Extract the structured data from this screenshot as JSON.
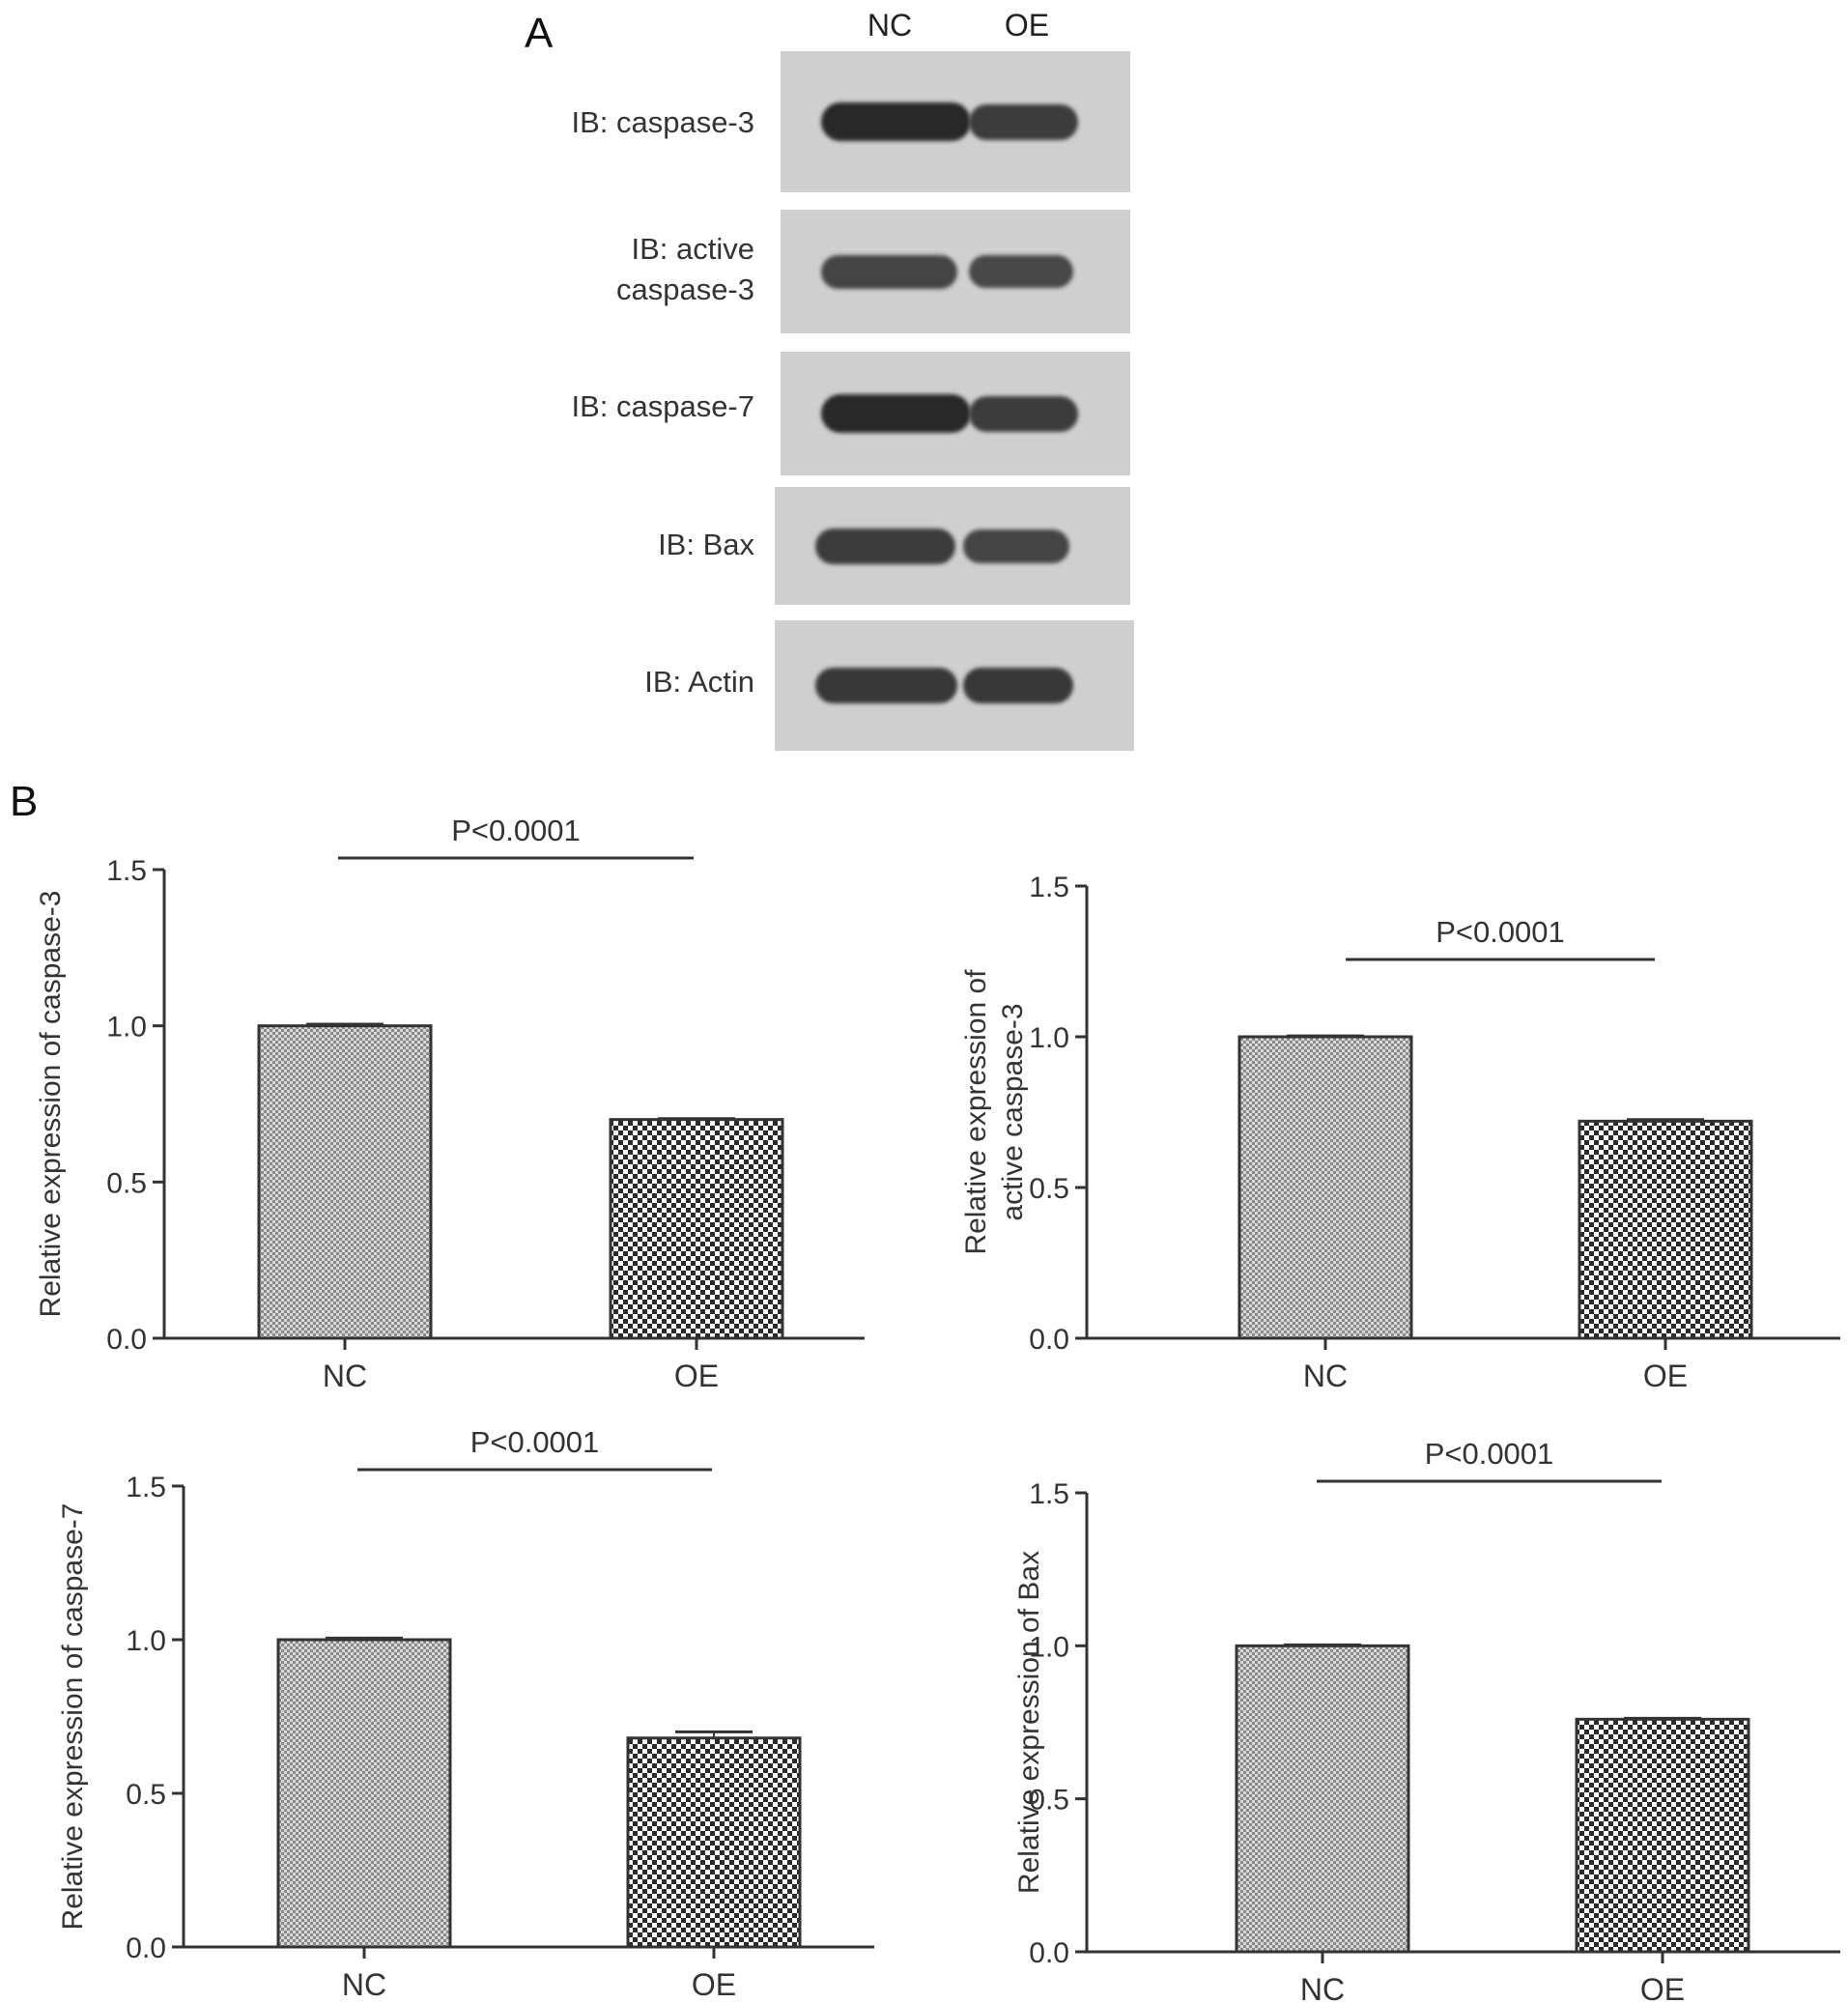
{
  "panel_a": {
    "letter": "A",
    "lanes": [
      "NC",
      "OE"
    ],
    "blots": [
      {
        "label_lines": [
          "IB: caspase-3"
        ],
        "band_intensity": [
          1.0,
          0.75
        ]
      },
      {
        "label_lines": [
          "IB: active",
          "caspase-3"
        ],
        "band_intensity": [
          0.65,
          0.6
        ]
      },
      {
        "label_lines": [
          "IB: caspase-7"
        ],
        "band_intensity": [
          1.0,
          0.75
        ]
      },
      {
        "label_lines": [
          "IB: Bax"
        ],
        "band_intensity": [
          0.75,
          0.65
        ]
      },
      {
        "label_lines": [
          "IB: Actin"
        ],
        "band_intensity": [
          0.8,
          0.8
        ]
      }
    ]
  },
  "panel_b": {
    "letter": "B"
  },
  "colors": {
    "axis": "#333333",
    "bar_fill": "#bfbfbf",
    "bar_stroke": "#333333",
    "blot_bg": "#cfcfcf",
    "band": "#3a3a3a"
  },
  "chart_data": [
    {
      "type": "bar",
      "categories": [
        "NC",
        "OE"
      ],
      "values": [
        1.0,
        0.7
      ],
      "errors": [
        0.005,
        0.003
      ],
      "ylabel": "Relative expression of caspase-3",
      "yticks": [
        "0.0",
        "0.5",
        "1.0",
        "1.5"
      ],
      "ylim": [
        0,
        1.5
      ],
      "annotation": "P<0.0001",
      "xlabel": "",
      "grid": false
    },
    {
      "type": "bar",
      "categories": [
        "NC",
        "OE"
      ],
      "values": [
        1.0,
        0.72
      ],
      "errors": [
        0.003,
        0.005
      ],
      "ylabel": "Relative expression of active caspase-3",
      "yticks": [
        "0.0",
        "0.5",
        "1.0",
        "1.5"
      ],
      "ylim": [
        0,
        1.5
      ],
      "annotation": "P<0.0001",
      "xlabel": "",
      "grid": false
    },
    {
      "type": "bar",
      "categories": [
        "NC",
        "OE"
      ],
      "values": [
        1.0,
        0.68
      ],
      "errors": [
        0.005,
        0.02
      ],
      "ylabel": "Relative expression of caspase-7",
      "yticks": [
        "0.0",
        "0.5",
        "1.0",
        "1.5"
      ],
      "ylim": [
        0,
        1.5
      ],
      "annotation": "P<0.0001",
      "xlabel": "",
      "grid": false
    },
    {
      "type": "bar",
      "categories": [
        "NC",
        "OE"
      ],
      "values": [
        1.0,
        0.76
      ],
      "errors": [
        0.003,
        0.003
      ],
      "ylabel": "Relative expression of Bax",
      "yticks": [
        "0.0",
        "0.5",
        "1.0",
        "1.5"
      ],
      "ylim": [
        0,
        1.5
      ],
      "annotation": "P<0.0001",
      "xlabel": "",
      "grid": false
    }
  ]
}
